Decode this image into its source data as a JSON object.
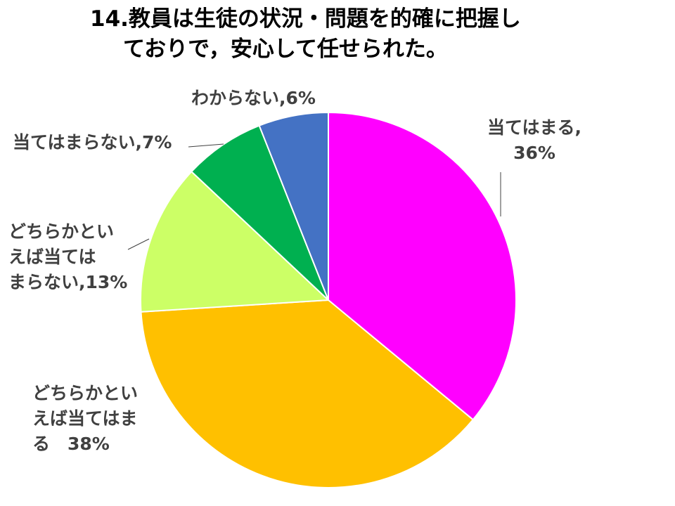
{
  "chart_data": {
    "type": "pie",
    "title_lines": [
      "14.教員は生徒の状況・問題を的確に把握し",
      "ておりで，安心して任せられた。"
    ],
    "slices": [
      {
        "name": "当てはまる",
        "value": 36,
        "color": "#FF00FF",
        "label_lines": [
          "当てはまる,",
          "36%"
        ]
      },
      {
        "name": "どちらかといえば当てはまる",
        "value": 38,
        "color": "#FFC000",
        "label_lines": [
          "どちらかとい",
          "えば当てはま",
          "る　38%"
        ]
      },
      {
        "name": "どちらかといえば当てはまらない",
        "value": 13,
        "color": "#CCFF66",
        "label_lines": [
          "どちらかとい",
          "えば当ては",
          "まらない,13%"
        ]
      },
      {
        "name": "当てはまらない",
        "value": 7,
        "color": "#00B050",
        "label_lines": [
          "当てはまらない,7%"
        ]
      },
      {
        "name": "わからない",
        "value": 6,
        "color": "#4472C4",
        "label_lines": [
          "わからない,6%"
        ]
      }
    ],
    "start_angle_deg": 0,
    "direction": "clockwise",
    "legend": "none"
  }
}
